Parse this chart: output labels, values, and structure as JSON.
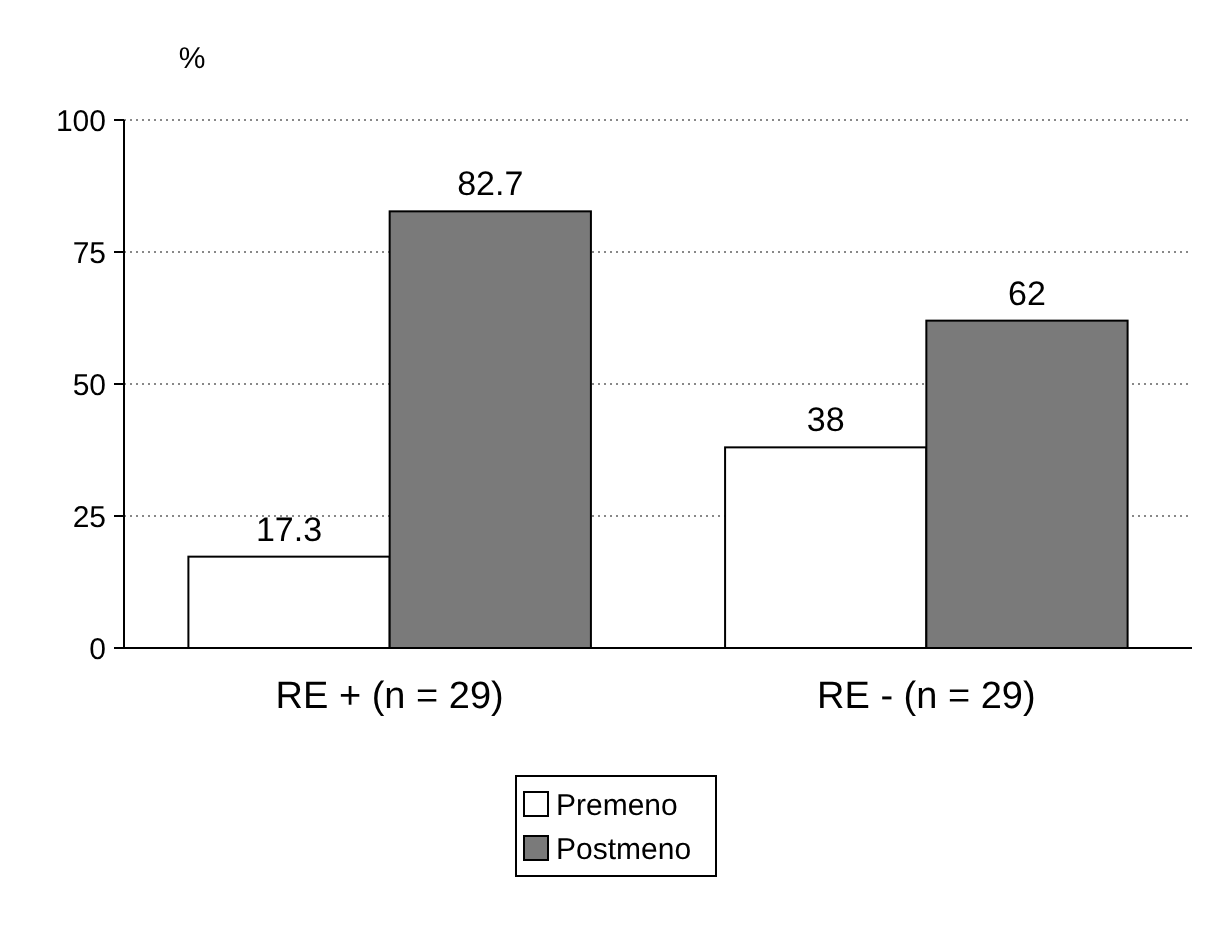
{
  "chart_data": {
    "type": "bar",
    "ylabel": "%",
    "categories": [
      "RE + (n = 29)",
      "RE - (n = 29)"
    ],
    "series": [
      {
        "name": "Premeno",
        "color": "#ffffff",
        "values": [
          17.3,
          38
        ]
      },
      {
        "name": "Postmeno",
        "color": "#7a7a7a",
        "values": [
          82.7,
          62
        ]
      }
    ],
    "ylim": [
      0,
      100
    ],
    "yticks": [
      0,
      25,
      50,
      75,
      100
    ],
    "grid": "y",
    "legend": "bottom",
    "data_labels": true
  }
}
